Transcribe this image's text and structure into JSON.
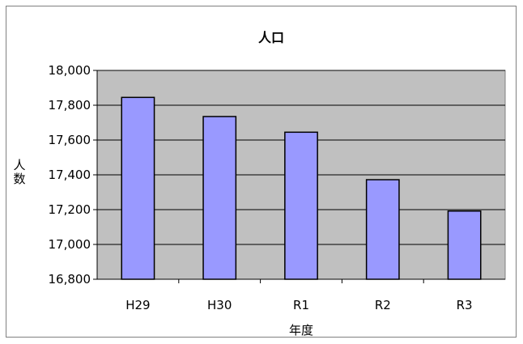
{
  "chart_data": {
    "type": "bar",
    "title": "人口",
    "xlabel": "年度",
    "ylabel": "人数",
    "categories": [
      "H29",
      "H30",
      "R1",
      "R2",
      "R3"
    ],
    "values": [
      17845,
      17735,
      17645,
      17372,
      17192
    ],
    "ylim": [
      16800,
      18000
    ],
    "yticks": [
      16800,
      17000,
      17200,
      17400,
      17600,
      17800,
      18000
    ],
    "ytick_labels": [
      "16,800",
      "17,000",
      "17,200",
      "17,400",
      "17,600",
      "17,800",
      "18,000"
    ],
    "grid": true,
    "legend": "none",
    "colors": {
      "bar_fill": "#9999ff",
      "bar_stroke": "#000000",
      "plot_background": "#c0c0c0",
      "gridline": "#000000"
    }
  }
}
